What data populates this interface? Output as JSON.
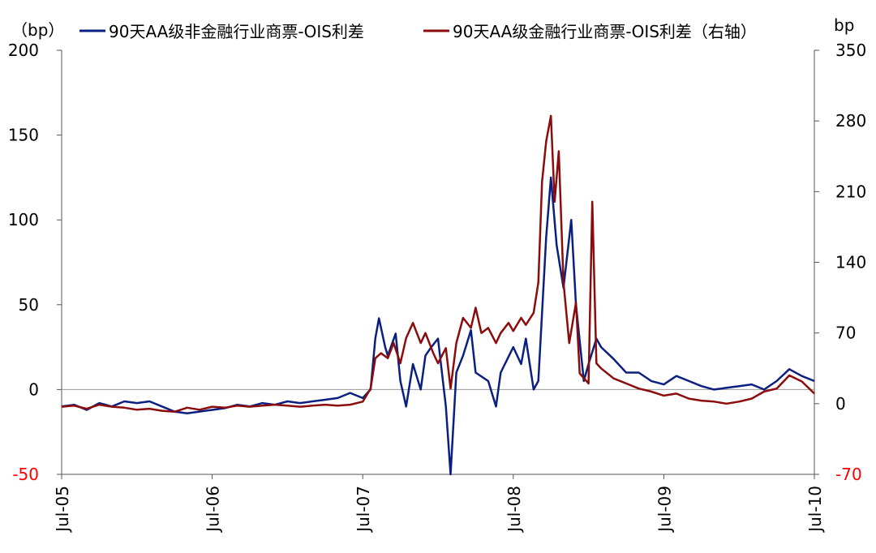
{
  "chart_data": {
    "type": "line",
    "left_axis_unit": "（bp）",
    "right_axis_unit": "bp",
    "x_ticks": [
      "Jul-05",
      "Jul-06",
      "Jul-07",
      "Jul-08",
      "Jul-09",
      "Jul-10"
    ],
    "x_range": [
      "2005-07",
      "2010-07"
    ],
    "y_left": {
      "ticks": [
        -50,
        0,
        50,
        100,
        150,
        200
      ],
      "range": [
        -50,
        200
      ]
    },
    "y_right": {
      "ticks": [
        -70,
        0,
        70,
        140,
        210,
        280,
        350
      ],
      "range": [
        -70,
        350
      ]
    },
    "grid": false,
    "legend_position": "top",
    "colors": {
      "series_left": "#0b1f80",
      "series_right": "#8b0c0c",
      "negative_tick": "#ff0000",
      "axis": "#555555",
      "zero_line": "#999999"
    },
    "series": [
      {
        "name": "90天AA级非金融行业商票-OIS利差",
        "axis": "left",
        "points": [
          [
            "2005-07",
            -10
          ],
          [
            "2005-08",
            -9
          ],
          [
            "2005-09",
            -12
          ],
          [
            "2005-10",
            -8
          ],
          [
            "2005-11",
            -10
          ],
          [
            "2005-12",
            -7
          ],
          [
            "2006-01",
            -8
          ],
          [
            "2006-02",
            -7
          ],
          [
            "2006-03",
            -10
          ],
          [
            "2006-04",
            -13
          ],
          [
            "2006-05",
            -14
          ],
          [
            "2006-06",
            -13
          ],
          [
            "2006-07",
            -12
          ],
          [
            "2006-08",
            -11
          ],
          [
            "2006-09",
            -9
          ],
          [
            "2006-10",
            -10
          ],
          [
            "2006-11",
            -8
          ],
          [
            "2006-12",
            -9
          ],
          [
            "2007-01",
            -7
          ],
          [
            "2007-02",
            -8
          ],
          [
            "2007-03",
            -7
          ],
          [
            "2007-04",
            -6
          ],
          [
            "2007-05",
            -5
          ],
          [
            "2007-06",
            -2
          ],
          [
            "2007-07",
            -5
          ],
          [
            "2007-07-20",
            0
          ],
          [
            "2007-08",
            30
          ],
          [
            "2007-08-10",
            42
          ],
          [
            "2007-08-25",
            25
          ],
          [
            "2007-09",
            20
          ],
          [
            "2007-09-20",
            33
          ],
          [
            "2007-10",
            5
          ],
          [
            "2007-10-15",
            -10
          ],
          [
            "2007-11",
            15
          ],
          [
            "2007-11-20",
            0
          ],
          [
            "2007-12",
            20
          ],
          [
            "2007-12-15",
            25
          ],
          [
            "2008-01",
            30
          ],
          [
            "2008-01-20",
            -10
          ],
          [
            "2008-02",
            -50
          ],
          [
            "2008-02-15",
            10
          ],
          [
            "2008-03",
            20
          ],
          [
            "2008-03-20",
            35
          ],
          [
            "2008-04",
            10
          ],
          [
            "2008-05",
            5
          ],
          [
            "2008-05-20",
            -10
          ],
          [
            "2008-06",
            10
          ],
          [
            "2008-07",
            25
          ],
          [
            "2008-07-20",
            15
          ],
          [
            "2008-08",
            30
          ],
          [
            "2008-08-20",
            0
          ],
          [
            "2008-09",
            5
          ],
          [
            "2008-09-20",
            90
          ],
          [
            "2008-10",
            125
          ],
          [
            "2008-10-15",
            85
          ],
          [
            "2008-11",
            60
          ],
          [
            "2008-11-20",
            100
          ],
          [
            "2008-12",
            50
          ],
          [
            "2008-12-20",
            5
          ],
          [
            "2009-01",
            15
          ],
          [
            "2009-01-20",
            30
          ],
          [
            "2009-02",
            25
          ],
          [
            "2009-03",
            18
          ],
          [
            "2009-04",
            10
          ],
          [
            "2009-05",
            10
          ],
          [
            "2009-06",
            5
          ],
          [
            "2009-07",
            3
          ],
          [
            "2009-08",
            8
          ],
          [
            "2009-09",
            5
          ],
          [
            "2009-10",
            2
          ],
          [
            "2009-11",
            0
          ],
          [
            "2009-12",
            1
          ],
          [
            "2010-01",
            2
          ],
          [
            "2010-02",
            3
          ],
          [
            "2010-03",
            0
          ],
          [
            "2010-04",
            5
          ],
          [
            "2010-05",
            12
          ],
          [
            "2010-06",
            8
          ],
          [
            "2010-07",
            5
          ]
        ]
      },
      {
        "name": "90天AA级金融行业商票-OIS利差（右轴）",
        "axis": "right",
        "points": [
          [
            "2005-07",
            -3
          ],
          [
            "2005-08",
            -2
          ],
          [
            "2005-09",
            -5
          ],
          [
            "2005-10",
            -1
          ],
          [
            "2005-11",
            -3
          ],
          [
            "2005-12",
            -4
          ],
          [
            "2006-01",
            -6
          ],
          [
            "2006-02",
            -5
          ],
          [
            "2006-03",
            -7
          ],
          [
            "2006-04",
            -8
          ],
          [
            "2006-05",
            -4
          ],
          [
            "2006-06",
            -6
          ],
          [
            "2006-07",
            -3
          ],
          [
            "2006-08",
            -4
          ],
          [
            "2006-09",
            -2
          ],
          [
            "2006-10",
            -3
          ],
          [
            "2006-11",
            -2
          ],
          [
            "2006-12",
            -1
          ],
          [
            "2007-01",
            -2
          ],
          [
            "2007-02",
            -3
          ],
          [
            "2007-03",
            -2
          ],
          [
            "2007-04",
            -1
          ],
          [
            "2007-05",
            -2
          ],
          [
            "2007-06",
            -1
          ],
          [
            "2007-07",
            2
          ],
          [
            "2007-07-20",
            15
          ],
          [
            "2007-08",
            45
          ],
          [
            "2007-08-15",
            50
          ],
          [
            "2007-09",
            45
          ],
          [
            "2007-09-15",
            60
          ],
          [
            "2007-10",
            40
          ],
          [
            "2007-10-15",
            65
          ],
          [
            "2007-11",
            80
          ],
          [
            "2007-11-20",
            60
          ],
          [
            "2007-12",
            70
          ],
          [
            "2007-12-20",
            50
          ],
          [
            "2008-01",
            40
          ],
          [
            "2008-01-20",
            55
          ],
          [
            "2008-02",
            15
          ],
          [
            "2008-02-15",
            60
          ],
          [
            "2008-03",
            85
          ],
          [
            "2008-03-20",
            75
          ],
          [
            "2008-04",
            95
          ],
          [
            "2008-04-15",
            70
          ],
          [
            "2008-05",
            75
          ],
          [
            "2008-05-20",
            60
          ],
          [
            "2008-06",
            70
          ],
          [
            "2008-06-20",
            80
          ],
          [
            "2008-07",
            72
          ],
          [
            "2008-07-20",
            85
          ],
          [
            "2008-08",
            78
          ],
          [
            "2008-08-20",
            90
          ],
          [
            "2008-09",
            120
          ],
          [
            "2008-09-10",
            220
          ],
          [
            "2008-09-20",
            260
          ],
          [
            "2008-10",
            285
          ],
          [
            "2008-10-10",
            200
          ],
          [
            "2008-10-20",
            250
          ],
          [
            "2008-11",
            120
          ],
          [
            "2008-11-15",
            60
          ],
          [
            "2008-12",
            100
          ],
          [
            "2008-12-10",
            30
          ],
          [
            "2009-01",
            20
          ],
          [
            "2009-01-10",
            200
          ],
          [
            "2009-01-20",
            40
          ],
          [
            "2009-02",
            35
          ],
          [
            "2009-03",
            25
          ],
          [
            "2009-04",
            20
          ],
          [
            "2009-05",
            15
          ],
          [
            "2009-06",
            12
          ],
          [
            "2009-07",
            8
          ],
          [
            "2009-08",
            10
          ],
          [
            "2009-09",
            5
          ],
          [
            "2009-10",
            3
          ],
          [
            "2009-11",
            2
          ],
          [
            "2009-12",
            0
          ],
          [
            "2010-01",
            2
          ],
          [
            "2010-02",
            5
          ],
          [
            "2010-03",
            12
          ],
          [
            "2010-04",
            15
          ],
          [
            "2010-05",
            28
          ],
          [
            "2010-06",
            22
          ],
          [
            "2010-07",
            10
          ]
        ]
      }
    ]
  }
}
